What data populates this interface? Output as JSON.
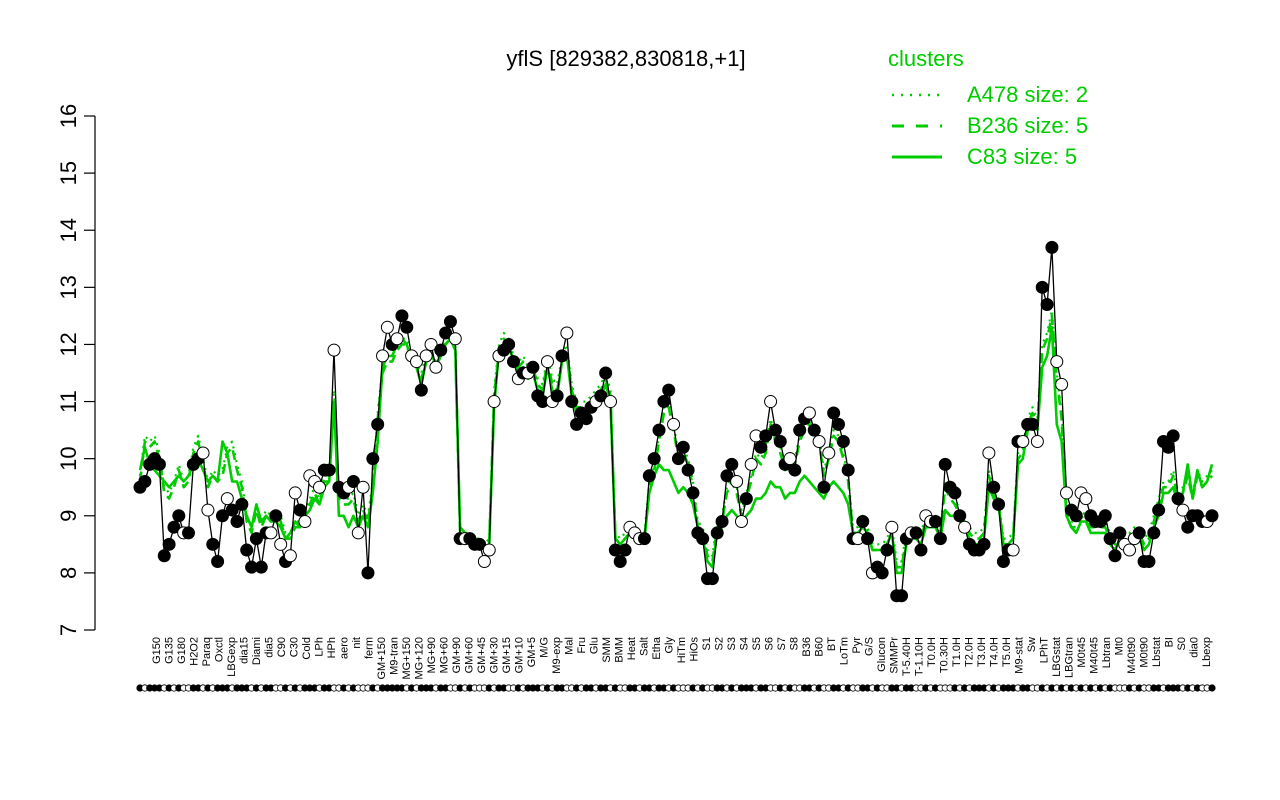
{
  "chart_data": {
    "type": "line",
    "title": "yflS [829382,830818,+1]",
    "xlabel": "",
    "ylabel": "",
    "ylim": [
      7,
      16
    ],
    "y_ticks": [
      7,
      8,
      9,
      10,
      11,
      12,
      13,
      14,
      15,
      16
    ],
    "grid": false,
    "legend": {
      "title": "clusters",
      "placement": "top-right",
      "entries": [
        {
          "label": "A478 size: 2",
          "style": "dotted"
        },
        {
          "label": "B236 size: 5",
          "style": "dashed"
        },
        {
          "label": "C83 size: 5",
          "style": "solid"
        }
      ]
    },
    "colors": {
      "cluster_line": "#00cc00",
      "main_line": "#000000",
      "axis": "#000000"
    },
    "x_tick_labels": [
      "G150",
      "G135",
      "G180",
      "H2O2",
      "Paraq",
      "Oxctl",
      "LBGexp",
      "dia15",
      "Diami",
      "dia5",
      "C90",
      "C30",
      "Cold",
      "LPh",
      "HPh",
      "aero",
      "nit",
      "ferm",
      "GM+150",
      "M9-tran",
      "MG+150",
      "MG+120",
      "MG+90",
      "MG+60",
      "GM+90",
      "GM+60",
      "GM+45",
      "GM+30",
      "GM+15",
      "GM+10",
      "GM+5",
      "M/G",
      "M9-exp",
      "Mal",
      "Fru",
      "Glu",
      "SMM",
      "BMM",
      "Heat",
      "Salt",
      "Etha",
      "Gly",
      "HiTm",
      "HiOs",
      "S1",
      "S2",
      "S3",
      "S4",
      "S5",
      "S6",
      "S7",
      "S8",
      "B36",
      "B60",
      "BT",
      "LoTm",
      "Pyr",
      "G/S",
      "Glucon",
      "SMMPr",
      "T-5.40H",
      "T-1.10H",
      "T0.0H",
      "T0.30H",
      "T1.0H",
      "T2.0H",
      "T3.0H",
      "T4.0H",
      "T5.0H",
      "M9-stat",
      "Sw",
      "LPhT",
      "LBGstat",
      "LBGtran",
      "M0t45",
      "M40t45",
      "Lbtran",
      "Mt0",
      "M40t90",
      "M0t90",
      "Lbstat",
      "BI",
      "S0",
      "dia0",
      "Lbexp"
    ],
    "series": [
      {
        "values": [
          9.5,
          9.6,
          9.9,
          10.0,
          9.9,
          8.3,
          8.5,
          8.8,
          9.0,
          8.7,
          8.7,
          9.9,
          10.0,
          10.1,
          9.1,
          8.5,
          8.2,
          9.0,
          9.3,
          9.1,
          8.9,
          9.2,
          8.4,
          8.1,
          8.6,
          8.1,
          8.7,
          8.7,
          9.0,
          8.5,
          8.2,
          8.3,
          9.4,
          9.1,
          8.9,
          9.7,
          9.6,
          9.5,
          9.8,
          9.8,
          11.9,
          9.5,
          9.4,
          9.5,
          9.6,
          8.7,
          9.5,
          8.0,
          10.0,
          10.6,
          11.8,
          12.3,
          12.0,
          12.1,
          12.5,
          12.3,
          11.8,
          11.7,
          11.2,
          11.8,
          12.0,
          11.6,
          11.9,
          12.2,
          12.4,
          12.1,
          8.6,
          8.6,
          8.6,
          8.5,
          8.5,
          8.2,
          8.4,
          11.0,
          11.8,
          11.9,
          12.0,
          11.7,
          11.4,
          11.5,
          11.5,
          11.6,
          11.1,
          11.0,
          11.7,
          11.0,
          11.1,
          11.8,
          12.2,
          11.0,
          10.6,
          10.8,
          10.7,
          10.9,
          11.0,
          11.1,
          11.5,
          11.0,
          8.4,
          8.2,
          8.4,
          8.8,
          8.7,
          8.6,
          8.6,
          9.7,
          10.0,
          10.5,
          11.0,
          11.2,
          10.6,
          10.0,
          10.2,
          9.8,
          9.4,
          8.7,
          8.6,
          7.9,
          7.9,
          8.7,
          8.9,
          9.7,
          9.9,
          9.6,
          8.9,
          9.3,
          9.9,
          10.4,
          10.2,
          10.4,
          11.0,
          10.5,
          10.3,
          9.9,
          10.0,
          9.8,
          10.5,
          10.7,
          10.8,
          10.5,
          10.3,
          9.5,
          10.1,
          10.8,
          10.6,
          10.3,
          9.8,
          8.6,
          8.6,
          8.9,
          8.6,
          8.0,
          8.1,
          8.0,
          8.4,
          8.8,
          7.6,
          7.6,
          8.6,
          8.7,
          8.7,
          8.4,
          9.0,
          8.9,
          8.9,
          8.6,
          9.9,
          9.5,
          9.4,
          9.0,
          8.8,
          8.5,
          8.4,
          8.4,
          8.5,
          10.1,
          9.5,
          9.2,
          8.2,
          8.4,
          8.4,
          10.3,
          10.3,
          10.6,
          10.6,
          10.3,
          13.0,
          12.7,
          13.7,
          11.7,
          11.3,
          9.4,
          9.1,
          9.0,
          9.4,
          9.3,
          9.0,
          8.9,
          8.9,
          9.0,
          8.6,
          8.3,
          8.7,
          8.5,
          8.4,
          8.6,
          8.7,
          8.2,
          8.2,
          8.7,
          9.1,
          10.3,
          10.2,
          10.4,
          9.3,
          9.1,
          8.8,
          9.0,
          9.0,
          8.9,
          8.9,
          9.0
        ]
      },
      {
        "values": [
          9.7,
          10.4,
          10.3,
          10.4,
          10.1,
          9.5,
          9.4,
          9.6,
          9.9,
          9.6,
          9.7,
          10.2,
          10.4,
          10.0,
          9.6,
          9.8,
          9.7,
          9.8,
          10.2,
          10.3,
          9.9,
          9.6,
          9.0,
          8.8,
          9.2,
          8.9,
          9.1,
          9.0,
          9.1,
          9.0,
          8.7,
          8.7,
          8.9,
          8.9,
          9.1,
          9.3,
          9.5,
          9.3,
          9.7,
          9.7,
          11.2,
          9.4,
          9.3,
          9.3,
          9.4,
          9.0,
          9.2,
          9.0,
          9.6,
          10.8,
          11.6,
          11.8,
          11.8,
          12.0,
          12.1,
          12.1,
          11.8,
          11.7,
          11.5,
          11.8,
          11.9,
          11.7,
          11.9,
          12.1,
          12.2,
          12.0,
          8.8,
          8.7,
          8.7,
          8.6,
          8.6,
          8.5,
          8.6,
          11.2,
          12.0,
          12.2,
          12.1,
          11.8,
          11.7,
          11.8,
          11.6,
          11.7,
          11.4,
          11.3,
          11.8,
          11.4,
          11.3,
          11.8,
          12.0,
          11.3,
          11.0,
          11.0,
          11.0,
          11.1,
          11.2,
          11.3,
          11.5,
          11.2,
          8.7,
          8.6,
          8.7,
          8.8,
          8.8,
          8.7,
          8.7,
          9.6,
          9.9,
          10.4,
          10.9,
          11.0,
          10.6,
          10.1,
          10.2,
          10.0,
          9.6,
          8.9,
          8.8,
          8.4,
          8.3,
          8.9,
          9.0,
          9.5,
          9.7,
          9.5,
          9.1,
          9.4,
          9.7,
          10.1,
          10.0,
          10.2,
          10.7,
          10.4,
          10.2,
          9.9,
          10.1,
          10.0,
          10.4,
          10.6,
          10.7,
          10.5,
          10.4,
          9.8,
          10.1,
          10.5,
          10.4,
          10.1,
          9.7,
          8.8,
          8.8,
          9.0,
          8.8,
          8.5,
          8.5,
          8.5,
          8.6,
          8.8,
          8.2,
          8.2,
          8.7,
          8.8,
          8.8,
          8.7,
          9.0,
          9.0,
          9.0,
          8.8,
          9.6,
          9.4,
          9.3,
          9.1,
          9.0,
          8.8,
          8.7,
          8.7,
          8.8,
          9.8,
          9.5,
          9.3,
          8.6,
          8.6,
          8.7,
          10.1,
          10.2,
          10.7,
          10.9,
          10.7,
          12.0,
          12.2,
          12.6,
          11.5,
          10.8,
          9.1,
          8.9,
          8.9,
          9.1,
          9.0,
          8.9,
          8.9,
          8.9,
          8.9,
          8.7,
          8.6,
          8.8,
          8.7,
          8.7,
          8.8,
          8.8,
          8.6,
          8.7,
          9.0,
          9.3,
          9.6,
          9.6,
          9.8,
          9.4,
          9.5,
          9.8,
          9.4,
          9.8,
          9.6,
          9.7,
          9.8
        ]
      },
      {
        "values": [
          9.6,
          10.3,
          10.2,
          10.3,
          10.0,
          9.4,
          9.3,
          9.5,
          9.8,
          9.5,
          9.6,
          10.1,
          10.3,
          9.9,
          9.5,
          9.7,
          9.6,
          9.7,
          10.1,
          10.2,
          9.8,
          9.5,
          8.9,
          8.7,
          9.1,
          8.8,
          9.0,
          8.9,
          9.0,
          8.9,
          8.6,
          8.6,
          8.8,
          8.8,
          9.0,
          9.2,
          9.4,
          9.2,
          9.6,
          9.6,
          11.0,
          9.3,
          9.2,
          9.2,
          9.3,
          8.9,
          9.1,
          8.9,
          9.5,
          10.7,
          11.5,
          11.7,
          11.7,
          11.9,
          12.0,
          12.0,
          11.7,
          11.6,
          11.4,
          11.7,
          11.8,
          11.6,
          11.8,
          12.0,
          12.1,
          11.9,
          8.7,
          8.6,
          8.6,
          8.5,
          8.5,
          8.4,
          8.5,
          11.1,
          11.9,
          12.1,
          12.0,
          11.7,
          11.6,
          11.7,
          11.5,
          11.6,
          11.3,
          11.2,
          11.7,
          11.3,
          11.2,
          11.7,
          11.9,
          11.2,
          10.9,
          10.9,
          10.9,
          11.0,
          11.1,
          11.2,
          11.4,
          11.1,
          8.6,
          8.5,
          8.6,
          8.7,
          8.7,
          8.6,
          8.6,
          9.5,
          9.8,
          10.3,
          10.8,
          10.9,
          10.5,
          10.0,
          10.1,
          9.9,
          9.5,
          8.8,
          8.7,
          8.3,
          8.2,
          8.8,
          8.9,
          9.4,
          9.6,
          9.4,
          9.0,
          9.3,
          9.6,
          10.0,
          9.9,
          10.1,
          10.6,
          10.3,
          10.1,
          9.8,
          10.0,
          9.9,
          10.3,
          10.5,
          10.6,
          10.4,
          10.3,
          9.7,
          10.0,
          10.4,
          10.3,
          10.0,
          9.6,
          8.7,
          8.7,
          8.9,
          8.7,
          8.4,
          8.4,
          8.4,
          8.5,
          8.7,
          8.1,
          8.1,
          8.6,
          8.7,
          8.7,
          8.6,
          8.9,
          8.9,
          8.9,
          8.7,
          9.5,
          9.3,
          9.2,
          9.0,
          8.9,
          8.7,
          8.6,
          8.6,
          8.7,
          9.7,
          9.4,
          9.2,
          8.5,
          8.5,
          8.6,
          10.0,
          10.1,
          10.6,
          10.8,
          10.6,
          11.9,
          12.1,
          12.5,
          11.4,
          10.7,
          9.0,
          8.8,
          8.8,
          9.0,
          8.9,
          8.8,
          8.8,
          8.8,
          8.8,
          8.6,
          8.5,
          8.7,
          8.6,
          8.6,
          8.7,
          8.7,
          8.5,
          8.6,
          8.9,
          9.2,
          9.5,
          9.5,
          9.7,
          9.3,
          9.4,
          9.7,
          9.3,
          9.7,
          9.5,
          9.6,
          9.7
        ]
      },
      {
        "values": [
          9.8,
          10.2,
          9.9,
          9.8,
          9.7,
          9.6,
          9.5,
          9.6,
          9.7,
          9.6,
          9.7,
          9.9,
          10.0,
          9.8,
          9.6,
          9.7,
          9.6,
          10.3,
          10.1,
          9.6,
          9.6,
          9.3,
          9.0,
          8.8,
          9.2,
          8.9,
          9.0,
          8.9,
          8.9,
          8.8,
          8.6,
          8.7,
          8.9,
          8.8,
          9.0,
          9.1,
          9.3,
          9.2,
          9.5,
          9.6,
          11.0,
          9.0,
          9.0,
          8.8,
          9.0,
          8.8,
          9.0,
          8.8,
          9.4,
          10.3,
          11.6,
          11.8,
          11.8,
          12.0,
          12.1,
          12.0,
          11.7,
          11.6,
          11.3,
          11.7,
          11.9,
          11.6,
          11.8,
          12.0,
          12.1,
          11.9,
          8.8,
          8.7,
          8.6,
          8.6,
          8.5,
          8.4,
          8.5,
          10.9,
          11.9,
          12.0,
          12.0,
          11.7,
          11.5,
          11.6,
          11.4,
          11.5,
          11.2,
          11.1,
          11.6,
          11.2,
          11.1,
          11.7,
          11.8,
          11.1,
          10.8,
          10.8,
          10.8,
          10.9,
          11.0,
          11.1,
          11.3,
          11.0,
          8.6,
          8.5,
          8.6,
          8.7,
          8.7,
          8.6,
          8.6,
          9.4,
          9.7,
          9.9,
          9.8,
          9.8,
          9.6,
          9.4,
          9.5,
          9.4,
          9.2,
          8.8,
          8.6,
          8.2,
          8.1,
          8.7,
          8.8,
          9.0,
          9.1,
          9.0,
          8.9,
          9.0,
          9.1,
          9.3,
          9.3,
          9.4,
          9.6,
          9.5,
          9.5,
          9.3,
          9.4,
          9.4,
          9.6,
          9.7,
          9.6,
          9.5,
          9.4,
          9.3,
          9.5,
          9.6,
          9.5,
          9.4,
          9.2,
          8.7,
          8.7,
          8.8,
          8.7,
          8.4,
          8.4,
          8.4,
          8.5,
          8.7,
          8.0,
          8.0,
          8.5,
          8.6,
          8.6,
          8.5,
          8.8,
          8.8,
          8.8,
          8.6,
          9.1,
          9.0,
          9.0,
          8.9,
          8.8,
          8.6,
          8.5,
          8.5,
          8.6,
          9.5,
          9.3,
          9.2,
          8.5,
          8.5,
          8.6,
          9.9,
          10.0,
          10.5,
          10.7,
          10.5,
          11.6,
          11.8,
          12.3,
          10.6,
          10.3,
          9.0,
          8.8,
          8.7,
          8.9,
          8.9,
          8.7,
          8.7,
          8.7,
          8.7,
          8.5,
          8.4,
          8.6,
          8.5,
          8.5,
          8.6,
          8.6,
          8.4,
          8.5,
          8.8,
          9.0,
          9.4,
          9.4,
          9.5,
          9.2,
          9.4,
          9.9,
          9.3,
          9.8,
          9.5,
          9.6,
          9.9
        ]
      }
    ]
  }
}
